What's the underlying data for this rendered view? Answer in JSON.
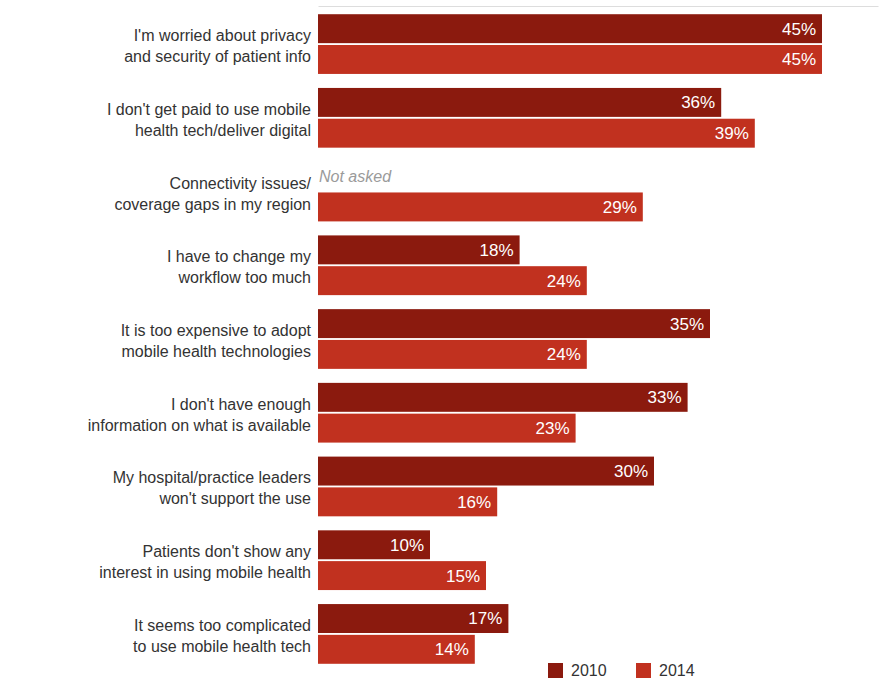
{
  "chart_data": {
    "type": "bar",
    "orientation": "horizontal",
    "categories": [
      "I'm worried about privacy and security of patient info",
      "I don't get paid to use mobile health tech/deliver digital",
      "Connectivity issues/ coverage gaps in my region",
      "I have to change my workflow too much",
      "It is too expensive to adopt mobile health technologies",
      "I don't have enough information on what is available",
      "My hospital/practice leaders won't support the use",
      "Patients don't show any interest in using mobile health",
      "It seems too complicated to use mobile health tech"
    ],
    "series": [
      {
        "name": "2010",
        "color": "#8b1a0e",
        "values": [
          45,
          36,
          null,
          18,
          35,
          33,
          30,
          10,
          17
        ],
        "value_labels": [
          "45%",
          "36%",
          null,
          "18%",
          "35%",
          "33%",
          "30%",
          "10%",
          "17%"
        ]
      },
      {
        "name": "2014",
        "color": "#c1311f",
        "values": [
          45,
          39,
          29,
          24,
          24,
          23,
          16,
          15,
          14
        ],
        "value_labels": [
          "45%",
          "39%",
          "29%",
          "24%",
          "24%",
          "23%",
          "16%",
          "15%",
          "14%"
        ]
      }
    ],
    "xlim": [
      0,
      50
    ],
    "xticks": [],
    "data_labels": true,
    "tick_labels": "y",
    "legend": "lower right",
    "grid": false,
    "annotations": [
      {
        "text": "Not asked",
        "series": "2010",
        "category": "Connectivity issues/ coverage gaps in my region"
      }
    ]
  }
}
